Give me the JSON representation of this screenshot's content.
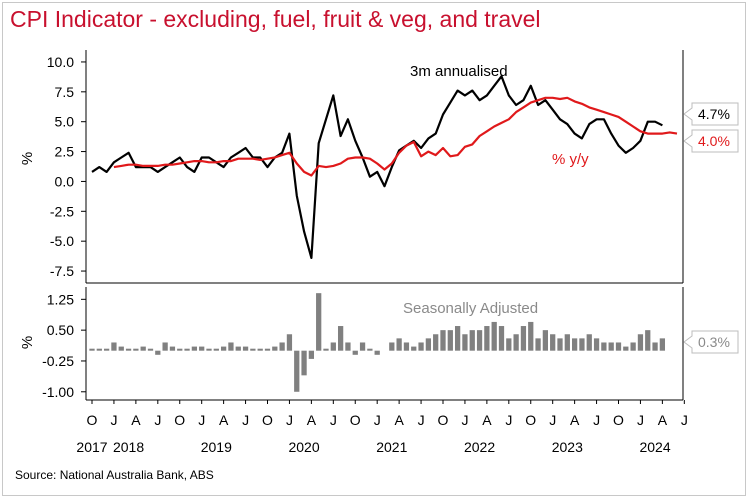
{
  "title": "CPI Indicator - excluding, fuel, fruit & veg, and travel",
  "source": "Source: National Australia Bank, ABS",
  "colors": {
    "title": "#c8102e",
    "annualised": "#000000",
    "yoy": "#e0191b",
    "bars": "#808080",
    "sa_label": "#8a8a8a"
  },
  "chart_data": [
    {
      "type": "line",
      "ylabel": "%",
      "ylim": [
        -8.5,
        11
      ],
      "yticks": [
        "10.0",
        "7.5",
        "5.0",
        "2.5",
        "0.0",
        "-2.5",
        "-5.0",
        "-7.5"
      ],
      "ytick_values": [
        10,
        7.5,
        5,
        2.5,
        0,
        -2.5,
        -5,
        -7.5
      ],
      "grid": false,
      "series": [
        {
          "name": "3m annualised",
          "color": "#000000",
          "start": "2017-10",
          "values": [
            0.8,
            1.2,
            0.8,
            1.6,
            2.0,
            2.4,
            1.2,
            1.2,
            1.2,
            0.8,
            1.2,
            1.6,
            2.0,
            1.2,
            0.8,
            2.0,
            2.0,
            1.6,
            1.2,
            2.0,
            2.4,
            2.8,
            2.0,
            2.0,
            1.2,
            2.0,
            2.4,
            4.0,
            -1.2,
            -4.2,
            -6.4,
            3.2,
            5.2,
            7.2,
            3.8,
            5.2,
            3.4,
            2.0,
            0.4,
            0.8,
            -0.4,
            1.2,
            2.6,
            3.0,
            3.4,
            2.8,
            3.6,
            4.0,
            5.6,
            6.6,
            7.6,
            7.2,
            7.6,
            6.8,
            7.2,
            8.0,
            8.8,
            7.2,
            6.4,
            6.8,
            8.0,
            6.4,
            6.8,
            6.0,
            5.2,
            4.8,
            4.0,
            3.6,
            4.8,
            5.2,
            5.2,
            4.0,
            3.0,
            2.4,
            2.8,
            3.4,
            5.0,
            5.0,
            4.7
          ]
        },
        {
          "name": "% y/y",
          "color": "#e0191b",
          "start": "2018-01",
          "values": [
            1.2,
            1.3,
            1.4,
            1.4,
            1.3,
            1.3,
            1.3,
            1.4,
            1.4,
            1.5,
            1.6,
            1.7,
            1.7,
            1.6,
            1.6,
            1.7,
            1.7,
            1.9,
            1.9,
            1.9,
            1.8,
            1.9,
            2.0,
            2.2,
            2.4,
            1.5,
            0.8,
            0.5,
            1.3,
            1.2,
            1.3,
            1.5,
            1.9,
            2.0,
            2.0,
            1.9,
            1.5,
            1.0,
            1.5,
            2.4,
            3.0,
            3.3,
            2.1,
            2.5,
            2.2,
            2.8,
            2.1,
            2.2,
            2.9,
            3.1,
            3.8,
            4.2,
            4.6,
            4.9,
            5.2,
            5.8,
            6.2,
            6.6,
            6.8,
            7.0,
            7.0,
            6.9,
            7.0,
            6.7,
            6.5,
            6.2,
            6.0,
            5.8,
            5.6,
            5.4,
            5.0,
            4.6,
            4.2,
            4.0,
            4.0,
            4.0,
            4.1,
            4.0
          ]
        }
      ],
      "annotations": [
        {
          "text": "3m annualised",
          "color": "#000000"
        },
        {
          "text": "% y/y",
          "color": "#e0191b"
        }
      ],
      "end_labels": [
        {
          "text": "4.7%",
          "value": 4.7,
          "color": "#000000"
        },
        {
          "text": "4.0%",
          "value": 4.0,
          "color": "#e0191b"
        }
      ]
    },
    {
      "type": "bar",
      "ylabel": "%",
      "ylim": [
        -1.2,
        1.55
      ],
      "yticks": [
        "1.25",
        "0.50",
        "-0.25",
        "-1.00"
      ],
      "ytick_values": [
        1.25,
        0.5,
        -0.25,
        -1.0
      ],
      "annotation": "Seasonally Adjusted",
      "start": "2017-10",
      "values": [
        0.0,
        0.0,
        0.0,
        0.2,
        0.1,
        0.0,
        0.0,
        0.1,
        0.0,
        -0.1,
        0.2,
        0.1,
        0.0,
        0.0,
        0.1,
        0.1,
        0.0,
        0.0,
        0.1,
        0.2,
        0.1,
        0.1,
        0.0,
        0.0,
        0.0,
        0.1,
        0.2,
        0.4,
        -1.0,
        -0.6,
        -0.2,
        1.4,
        0.0,
        0.2,
        0.6,
        0.2,
        -0.1,
        0.2,
        0.0,
        -0.1,
        null,
        0.2,
        0.3,
        0.2,
        0.1,
        0.2,
        0.3,
        0.4,
        0.5,
        0.5,
        0.6,
        0.4,
        0.5,
        0.5,
        0.6,
        0.7,
        0.6,
        0.3,
        0.4,
        0.6,
        0.7,
        0.3,
        0.5,
        0.4,
        0.3,
        0.4,
        0.3,
        0.3,
        0.4,
        0.3,
        0.2,
        0.2,
        0.2,
        0.1,
        0.2,
        0.4,
        0.5,
        0.2,
        0.3
      ],
      "end_label": {
        "text": "0.3%",
        "value": 0.3,
        "color": "#8a8a8a"
      }
    }
  ],
  "x_axis": {
    "month_ticks": [
      "O",
      "J",
      "A",
      "J",
      "O",
      "J",
      "A",
      "J",
      "O",
      "J",
      "A",
      "J",
      "O",
      "J",
      "A",
      "J",
      "O",
      "J",
      "A",
      "J",
      "O",
      "J",
      "A",
      "J",
      "O",
      "J",
      "A",
      "J"
    ],
    "years": [
      {
        "label": "2017",
        "at": 0
      },
      {
        "label": "2018",
        "at": 5
      },
      {
        "label": "2019",
        "at": 17
      },
      {
        "label": "2020",
        "at": 29
      },
      {
        "label": "2021",
        "at": 41
      },
      {
        "label": "2022",
        "at": 53
      },
      {
        "label": "2023",
        "at": 65
      },
      {
        "label": "2024",
        "at": 77
      }
    ]
  }
}
